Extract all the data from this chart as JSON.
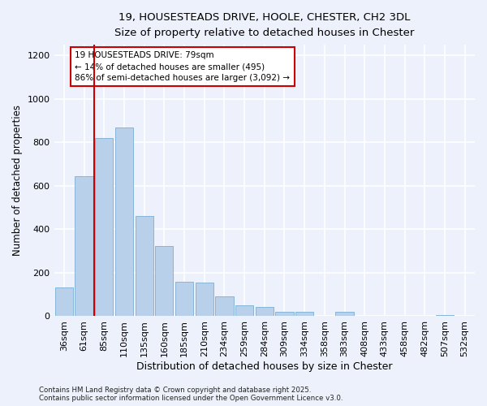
{
  "title_line1": "19, HOUSESTEADS DRIVE, HOOLE, CHESTER, CH2 3DL",
  "title_line2": "Size of property relative to detached houses in Chester",
  "xlabel": "Distribution of detached houses by size in Chester",
  "ylabel": "Number of detached properties",
  "categories": [
    "36sqm",
    "61sqm",
    "85sqm",
    "110sqm",
    "135sqm",
    "160sqm",
    "185sqm",
    "210sqm",
    "234sqm",
    "259sqm",
    "284sqm",
    "309sqm",
    "334sqm",
    "358sqm",
    "383sqm",
    "408sqm",
    "433sqm",
    "458sqm",
    "482sqm",
    "507sqm",
    "532sqm"
  ],
  "values": [
    130,
    645,
    820,
    870,
    460,
    320,
    158,
    155,
    90,
    50,
    40,
    18,
    18,
    0,
    20,
    0,
    0,
    0,
    0,
    5,
    0
  ],
  "bar_color": "#b8d0ea",
  "bar_edge_color": "#7aadd4",
  "background_color": "#edf1fb",
  "grid_color": "#ffffff",
  "vline_color": "#cc0000",
  "vline_pos": 2,
  "annotation_text": "19 HOUSESTEADS DRIVE: 79sqm\n← 14% of detached houses are smaller (495)\n86% of semi-detached houses are larger (3,092) →",
  "annotation_box_facecolor": "#ffffff",
  "annotation_box_edgecolor": "#cc0000",
  "ylim": [
    0,
    1250
  ],
  "yticks": [
    0,
    200,
    400,
    600,
    800,
    1000,
    1200
  ],
  "footnote": "Contains HM Land Registry data © Crown copyright and database right 2025.\nContains public sector information licensed under the Open Government Licence v3.0."
}
